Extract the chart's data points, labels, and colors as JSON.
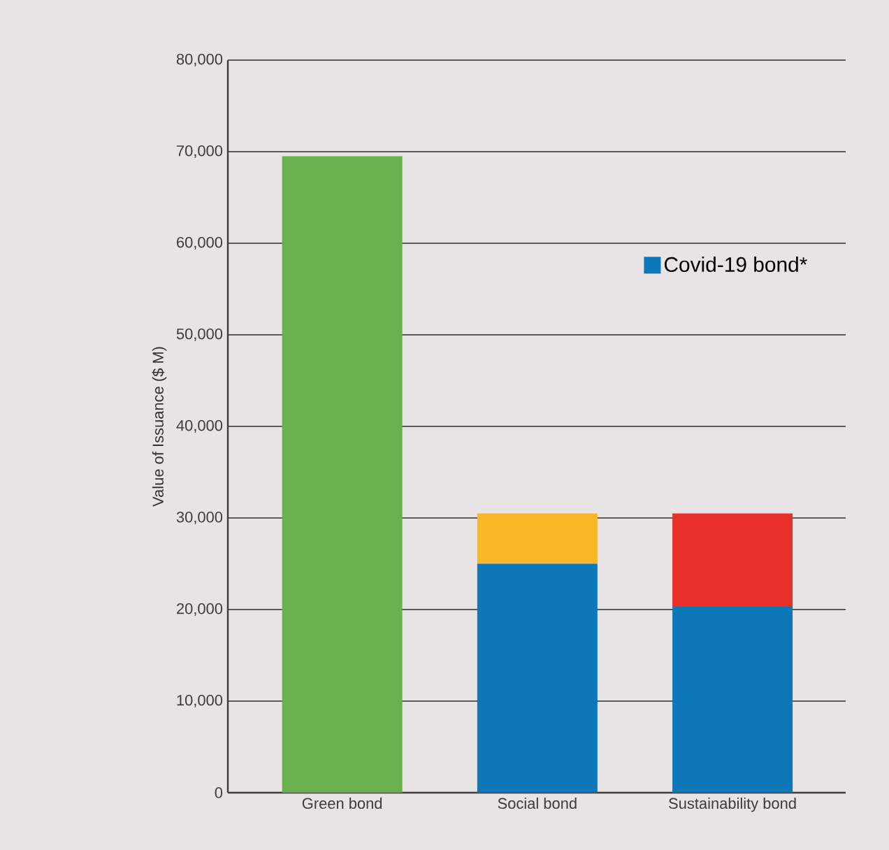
{
  "chart_data": {
    "type": "bar",
    "stacked": true,
    "ylabel": "Value of Issuance ($ M)",
    "categories": [
      "Green bond",
      "Social bond",
      "Sustainability bond"
    ],
    "series": [
      {
        "color": "#6ab04f",
        "values": [
          69500,
          null,
          null
        ]
      },
      {
        "name": "Covid-19 bond*",
        "color": "#0e77b8",
        "values": [
          null,
          25000,
          20300
        ]
      },
      {
        "color": "#f9b728",
        "values": [
          null,
          5500,
          null
        ]
      },
      {
        "color": "#e8302b",
        "values": [
          null,
          null,
          10200
        ]
      }
    ],
    "ylim": [
      0,
      80000
    ],
    "yticks": [
      0,
      {
        "value": 10000,
        "label": "10,000"
      },
      {
        "value": 20000,
        "label": "20,000"
      },
      {
        "value": 30000,
        "label": "30,000"
      },
      {
        "value": 40000,
        "label": "40,000"
      },
      {
        "value": 50000,
        "label": "50,000"
      },
      {
        "value": 60000,
        "label": "60,000"
      },
      {
        "value": 70000,
        "label": "70,000"
      },
      {
        "value": 80000,
        "label": "80,000"
      }
    ],
    "grid": "y",
    "legend": "right"
  }
}
